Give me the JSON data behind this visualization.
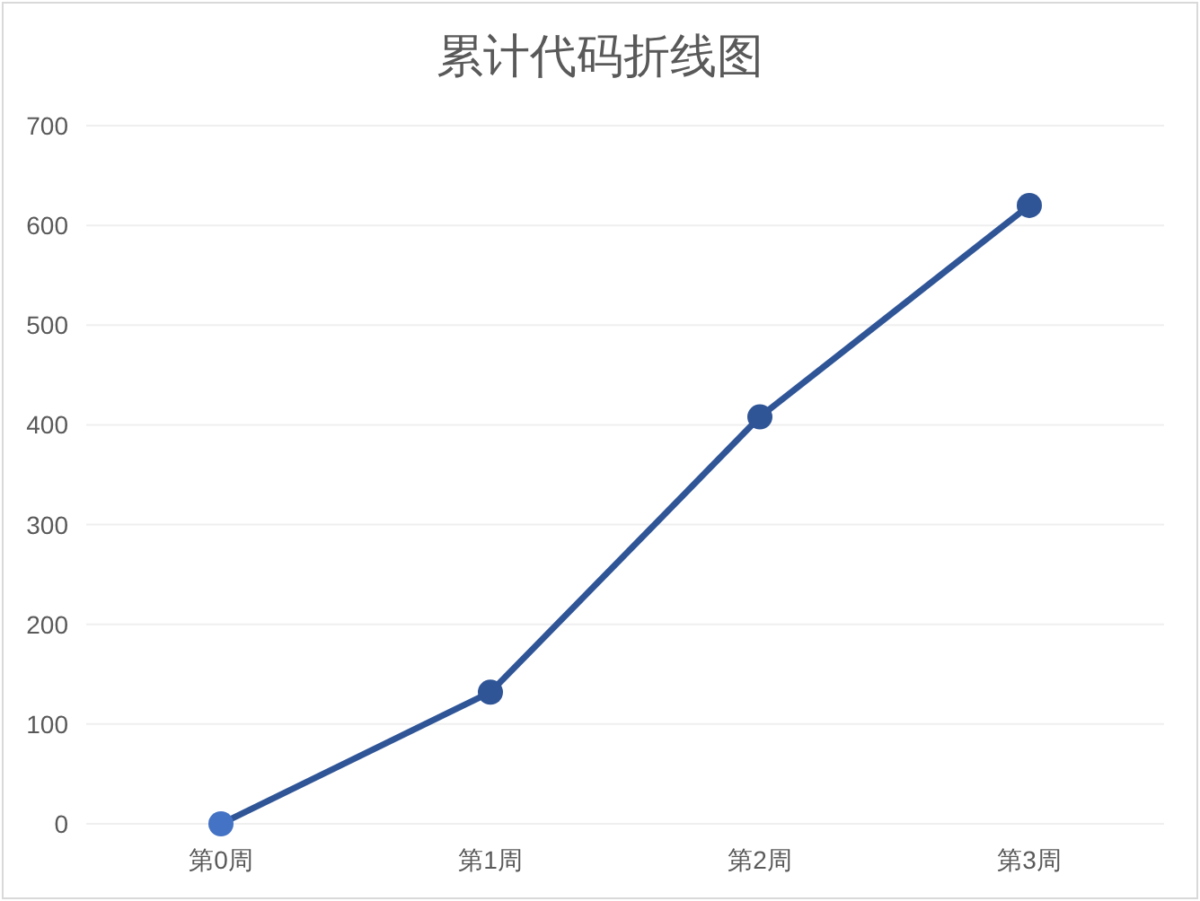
{
  "chart_data": {
    "type": "line",
    "title": "累计代码折线图",
    "categories": [
      "第0周",
      "第1周",
      "第2周",
      "第3周"
    ],
    "series": [
      {
        "color": "#2f5597",
        "colors": [
          "#4472c4",
          "#2f5597",
          "#2f5597",
          "#2f5597"
        ],
        "values": [
          0,
          132,
          408,
          620
        ]
      }
    ],
    "ylim": [
      0,
      700
    ],
    "yticks": [
      0,
      100,
      200,
      300,
      400,
      500,
      600,
      700
    ],
    "grid": "y",
    "marker": "circle",
    "line_style": "solid"
  }
}
